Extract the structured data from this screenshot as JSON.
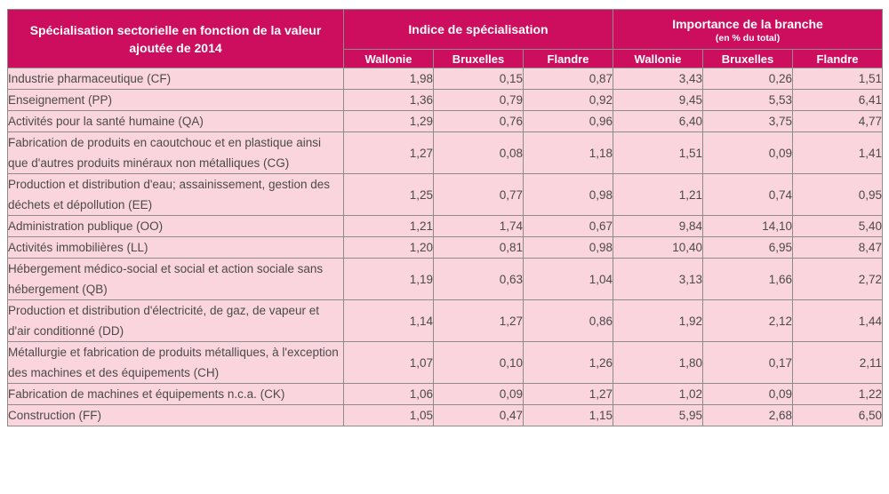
{
  "header": {
    "first_col_title": "Spécialisation sectorielle en fonction de la valeur ajoutée de 2014",
    "group1_title": "Indice de spécialisation",
    "group2_title": "Importance de la branche",
    "group2_subtitle": "(en % du total)",
    "regions": [
      "Wallonie",
      "Bruxelles",
      "Flandre",
      "Wallonie",
      "Bruxelles",
      "Flandre"
    ]
  },
  "rows": [
    {
      "label": "Industrie pharmaceutique (CF)",
      "values": [
        "1,98",
        "0,15",
        "0,87",
        "3,43",
        "0,26",
        "1,51"
      ]
    },
    {
      "label": "Enseignement (PP)",
      "values": [
        "1,36",
        "0,79",
        "0,92",
        "9,45",
        "5,53",
        "6,41"
      ]
    },
    {
      "label": "Activités pour la santé humaine (QA)",
      "values": [
        "1,29",
        "0,76",
        "0,96",
        "6,40",
        "3,75",
        "4,77"
      ]
    },
    {
      "label": "Fabrication de produits en caoutchouc et en plastique ainsi que d'autres produits minéraux non métalliques (CG)",
      "values": [
        "1,27",
        "0,08",
        "1,18",
        "1,51",
        "0,09",
        "1,41"
      ]
    },
    {
      "label": "Production et distribution d'eau; assainissement, gestion des déchets et dépollution (EE)",
      "values": [
        "1,25",
        "0,77",
        "0,98",
        "1,21",
        "0,74",
        "0,95"
      ]
    },
    {
      "label": "Administration publique (OO)",
      "values": [
        "1,21",
        "1,74",
        "0,67",
        "9,84",
        "14,10",
        "5,40"
      ]
    },
    {
      "label": "Activités immobilières (LL)",
      "values": [
        "1,20",
        "0,81",
        "0,98",
        "10,40",
        "6,95",
        "8,47"
      ]
    },
    {
      "label": "Hébergement médico-social et social et action sociale sans hébergement (QB)",
      "values": [
        "1,19",
        "0,63",
        "1,04",
        "3,13",
        "1,66",
        "2,72"
      ]
    },
    {
      "label": "Production et distribution d'électricité, de gaz, de vapeur et d'air conditionné (DD)",
      "values": [
        "1,14",
        "1,27",
        "0,86",
        "1,92",
        "2,12",
        "1,44"
      ]
    },
    {
      "label": "Métallurgie et fabrication de produits métalliques, à l'exception des machines et des équipements (CH)",
      "values": [
        "1,07",
        "0,10",
        "1,26",
        "1,80",
        "0,17",
        "2,11"
      ]
    },
    {
      "label": "Fabrication de machines et équipements n.c.a. (CK)",
      "values": [
        "1,06",
        "0,09",
        "1,27",
        "1,02",
        "0,09",
        "1,22"
      ]
    },
    {
      "label": "Construction (FF)",
      "values": [
        "1,05",
        "0,47",
        "1,15",
        "5,95",
        "2,68",
        "6,50"
      ]
    }
  ]
}
